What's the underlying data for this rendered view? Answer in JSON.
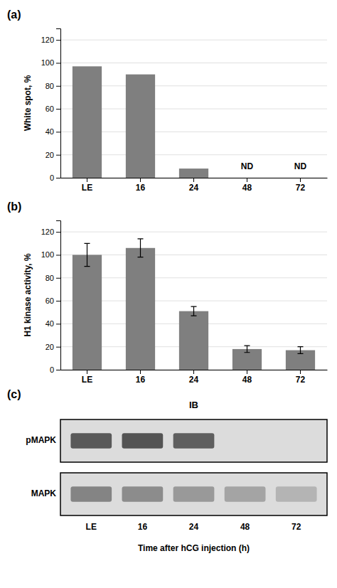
{
  "chart_data": [
    {
      "type": "bar",
      "title": "(a)",
      "categories": [
        "LE",
        "16",
        "24",
        "48",
        "72"
      ],
      "values": [
        97,
        90,
        8,
        0,
        0
      ],
      "ylabel": "White spot, %",
      "ylim": [
        0,
        130
      ],
      "yticks": [
        0,
        20,
        40,
        60,
        80,
        100,
        120
      ],
      "color": "#7f7f7f",
      "grid": true,
      "annotations": [
        {
          "text": "ND",
          "category": "48",
          "y": 6
        },
        {
          "text": "ND",
          "category": "72",
          "y": 6
        }
      ]
    },
    {
      "type": "bar",
      "title": "(b)",
      "categories": [
        "LE",
        "16",
        "24",
        "48",
        "72"
      ],
      "values": [
        100,
        106,
        51,
        18,
        17
      ],
      "errors": [
        10,
        8,
        4,
        3,
        3
      ],
      "ylabel": "H1 kinase activity, %",
      "ylim": [
        0,
        130
      ],
      "yticks": [
        0,
        20,
        40,
        60,
        80,
        100,
        120
      ],
      "color": "#7f7f7f",
      "grid": true
    },
    {
      "type": "blot",
      "title": "(c)",
      "subtitle": "IB",
      "xlabel": "Time after hCG injection (h)",
      "categories": [
        "LE",
        "16",
        "24",
        "48",
        "72"
      ],
      "color": "#dcdcdc",
      "series": [
        {
          "name": "pMAPK",
          "values": [
            0.82,
            0.85,
            0.78,
            0.0,
            0.0
          ]
        },
        {
          "name": "MAPK",
          "values": [
            0.55,
            0.5,
            0.42,
            0.35,
            0.25
          ]
        }
      ]
    }
  ]
}
